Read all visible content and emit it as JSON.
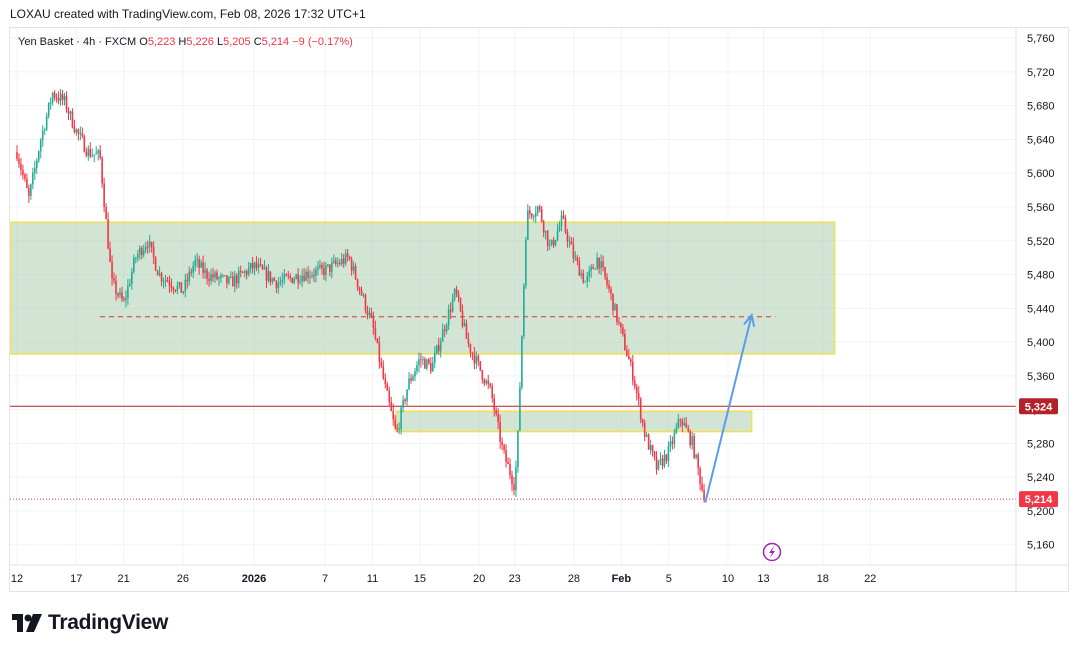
{
  "header": {
    "credit": "LOXAU created with TradingView.com, Feb 08, 2026 17:32 UTC+1"
  },
  "legend": {
    "symbol": "Yen Basket · 4h · FXCM",
    "o_label": "O",
    "o": "5,223",
    "h_label": "H",
    "h": "5,226",
    "l_label": "L",
    "l": "5,205",
    "c_label": "C",
    "c": "5,214",
    "change": "−9 (−0.17%)"
  },
  "branding": {
    "name": "TradingView"
  },
  "colors": {
    "up": "#22ab94",
    "down": "#f23645",
    "zone": "#a5c9a9",
    "zone_border": "#f0e050",
    "projection": "#5b9cf0",
    "price_line": "#b2222a"
  },
  "chart_data": {
    "type": "candlestick",
    "ylim": [
      5136,
      5772
    ],
    "y_ticks": [
      "5,160",
      "5,200",
      "5,240",
      "5,280",
      "5,320",
      "5,360",
      "5,400",
      "5,440",
      "5,480",
      "5,520",
      "5,560",
      "5,600",
      "5,640",
      "5,680",
      "5,720",
      "5,760"
    ],
    "x_tick_labels": [
      "12",
      "17",
      "21",
      "26",
      "2026",
      "7",
      "11",
      "15",
      "20",
      "23",
      "28",
      "Feb",
      "5",
      "10",
      "13",
      "18",
      "22"
    ],
    "anchors": [
      [
        "2025-12-12",
        5625
      ],
      [
        "2025-12-13",
        5570
      ],
      [
        "2025-12-14",
        5640
      ],
      [
        "2025-12-15",
        5695
      ],
      [
        "2025-12-16",
        5685
      ],
      [
        "2025-12-17",
        5650
      ],
      [
        "2025-12-18",
        5625
      ],
      [
        "2025-12-19",
        5620
      ],
      [
        "2025-12-20",
        5470
      ],
      [
        "2025-12-21",
        5445
      ],
      [
        "2025-12-22",
        5500
      ],
      [
        "2025-12-23",
        5520
      ],
      [
        "2025-12-24",
        5480
      ],
      [
        "2025-12-26",
        5460
      ],
      [
        "2025-12-27",
        5495
      ],
      [
        "2025-12-28",
        5480
      ],
      [
        "2025-12-30",
        5470
      ],
      [
        "2026-01-01",
        5490
      ],
      [
        "2026-01-03",
        5470
      ],
      [
        "2026-01-05",
        5480
      ],
      [
        "2026-01-07",
        5485
      ],
      [
        "2026-01-09",
        5500
      ],
      [
        "2026-01-10",
        5460
      ],
      [
        "2026-01-11",
        5420
      ],
      [
        "2026-01-12",
        5350
      ],
      [
        "2026-01-13",
        5290
      ],
      [
        "2026-01-14",
        5350
      ],
      [
        "2026-01-15",
        5380
      ],
      [
        "2026-01-16",
        5370
      ],
      [
        "2026-01-18",
        5460
      ],
      [
        "2026-01-19",
        5400
      ],
      [
        "2026-01-20",
        5370
      ],
      [
        "2026-01-21",
        5340
      ],
      [
        "2026-01-22",
        5270
      ],
      [
        "2026-01-23",
        5230
      ],
      [
        "2026-01-23T06",
        5280
      ],
      [
        "2026-01-24",
        5550
      ],
      [
        "2026-01-25",
        5560
      ],
      [
        "2026-01-26",
        5510
      ],
      [
        "2026-01-27",
        5545
      ],
      [
        "2026-01-28",
        5500
      ],
      [
        "2026-01-29",
        5470
      ],
      [
        "2026-01-30",
        5500
      ],
      [
        "2026-01-31",
        5460
      ],
      [
        "2026-02-01",
        5410
      ],
      [
        "2026-02-02",
        5360
      ],
      [
        "2026-02-03",
        5290
      ],
      [
        "2026-02-04",
        5250
      ],
      [
        "2026-02-05",
        5270
      ],
      [
        "2026-02-06",
        5310
      ],
      [
        "2026-02-07",
        5280
      ],
      [
        "2026-02-08",
        5214
      ]
    ],
    "zones": [
      {
        "from_date": "2025-12-11",
        "to_date": "2026-02-19",
        "y_low": 5386,
        "y_high": 5542
      },
      {
        "from_date": "2026-01-13",
        "to_date": "2026-02-12",
        "y_low": 5294,
        "y_high": 5318
      }
    ],
    "dashed_level": {
      "value": 5430,
      "from_date": "2025-12-19",
      "to_date": "2026-02-14"
    },
    "price_line": {
      "value": 5324,
      "label": "5,324"
    },
    "last_price": {
      "value": 5214,
      "label": "5,214"
    },
    "projection": {
      "from": [
        "2026-02-08",
        5210
      ],
      "to": [
        "2026-02-12",
        5432
      ]
    }
  }
}
